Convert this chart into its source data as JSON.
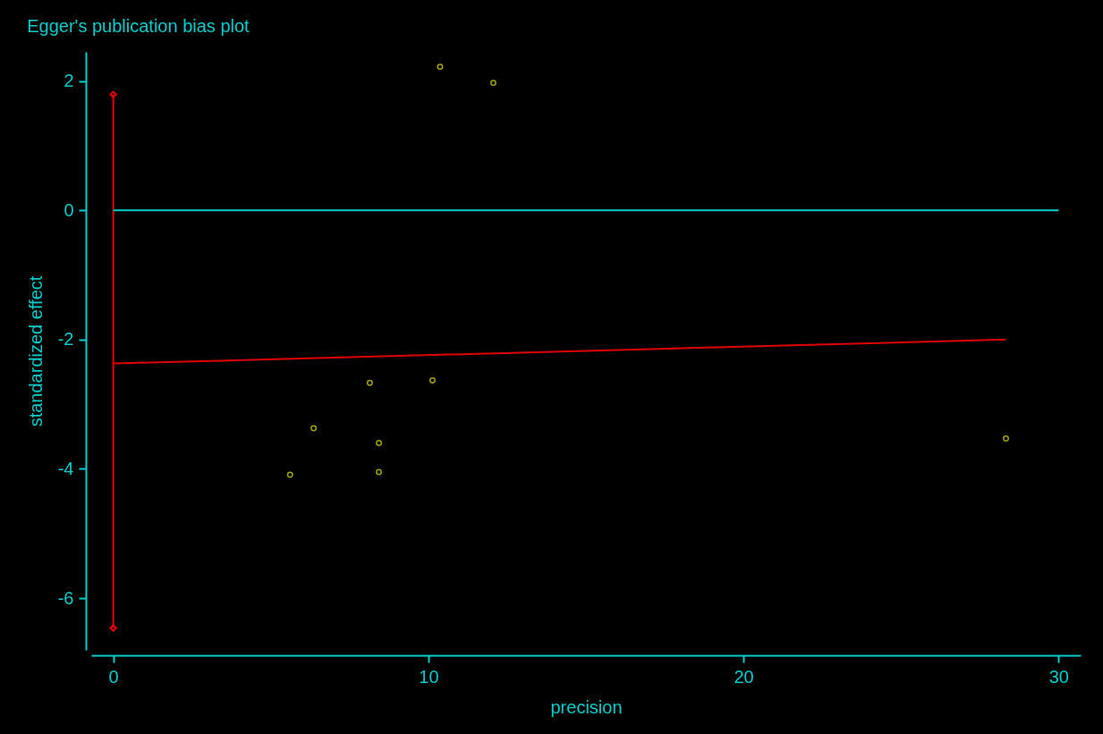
{
  "chart_data": {
    "type": "scatter",
    "title": "Egger's publication bias plot",
    "xlabel": "precision",
    "ylabel": "standardized effect",
    "series": [
      {
        "color": "#e6e600",
        "marker": "circle",
        "x": [
          10.37,
          12.06,
          8.14,
          10.13,
          6.36,
          8.43,
          5.61,
          8.43,
          28.33
        ],
        "values": [
          2.22,
          1.97,
          -2.67,
          -2.63,
          -3.37,
          -3.6,
          -4.09,
          -4.05,
          -3.53
        ]
      },
      {
        "type": "line",
        "color": "#e00000",
        "marker": "none",
        "x": [
          0,
          28.33
        ],
        "values": [
          -2.37,
          -2.0
        ]
      },
      {
        "type": "line",
        "color": "#e00000",
        "marker": "diamond",
        "x": [
          0,
          0
        ],
        "values": [
          1.79,
          -6.46
        ]
      }
    ],
    "ref_lines": [
      {
        "axis": "y",
        "value": 0,
        "color": "#00cccc"
      }
    ],
    "xlim": [
      -0.7,
      30.7
    ],
    "xticks": [
      0,
      10,
      20,
      30
    ],
    "ylim": [
      -6.8,
      2.45
    ],
    "yticks": [
      -6,
      -4,
      -2,
      0,
      2
    ],
    "grid": false
  }
}
